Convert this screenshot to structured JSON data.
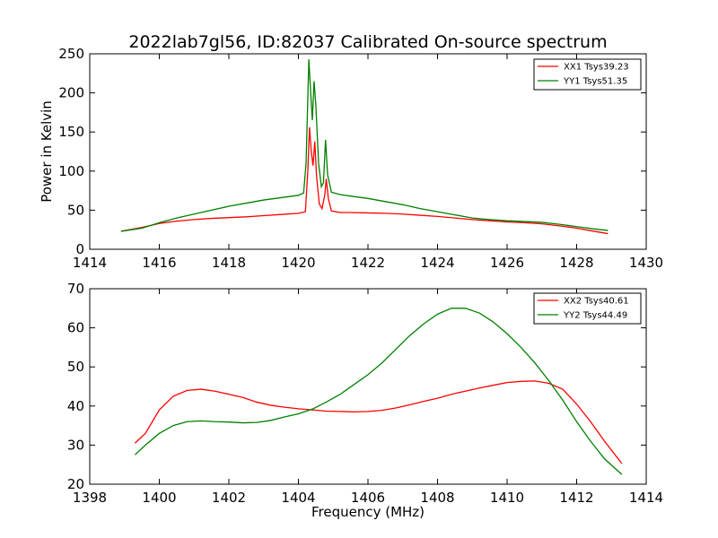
{
  "chart_data": [
    {
      "type": "line",
      "title": "2022lab7gl56, ID:82037 Calibrated On-source spectrum",
      "xlabel": "",
      "ylabel": "Power in Kelvin",
      "xlim": [
        1414,
        1430
      ],
      "ylim": [
        0,
        250
      ],
      "xticks": [
        1414,
        1416,
        1418,
        1420,
        1422,
        1424,
        1426,
        1428,
        1430
      ],
      "yticks": [
        0,
        50,
        100,
        150,
        200,
        250
      ],
      "legend_position": "top-right",
      "grid": false,
      "series": [
        {
          "name": "XX1 Tsys39.23",
          "color": "#ff0000",
          "points": [
            [
              1414.9,
              23
            ],
            [
              1415.5,
              28
            ],
            [
              1416.0,
              33
            ],
            [
              1416.5,
              36
            ],
            [
              1417.0,
              38
            ],
            [
              1417.5,
              39.5
            ],
            [
              1418.0,
              40.5
            ],
            [
              1418.5,
              41.5
            ],
            [
              1419.0,
              43
            ],
            [
              1419.5,
              44.5
            ],
            [
              1420.0,
              46
            ],
            [
              1420.2,
              48
            ],
            [
              1420.27,
              100
            ],
            [
              1420.32,
              156
            ],
            [
              1420.37,
              125
            ],
            [
              1420.42,
              107
            ],
            [
              1420.47,
              138
            ],
            [
              1420.52,
              95
            ],
            [
              1420.6,
              58
            ],
            [
              1420.68,
              52
            ],
            [
              1420.76,
              70
            ],
            [
              1420.8,
              90
            ],
            [
              1420.86,
              65
            ],
            [
              1420.95,
              49
            ],
            [
              1421.2,
              47
            ],
            [
              1421.5,
              47
            ],
            [
              1422.0,
              46.5
            ],
            [
              1422.5,
              46
            ],
            [
              1423.0,
              45
            ],
            [
              1423.5,
              43.5
            ],
            [
              1424.0,
              42
            ],
            [
              1424.5,
              40
            ],
            [
              1425.0,
              38
            ],
            [
              1425.5,
              36.5
            ],
            [
              1426.0,
              35
            ],
            [
              1426.5,
              34
            ],
            [
              1427.0,
              32.5
            ],
            [
              1427.5,
              30
            ],
            [
              1428.0,
              27
            ],
            [
              1428.5,
              23
            ],
            [
              1428.9,
              20
            ]
          ]
        },
        {
          "name": "YY1 Tsys51.35",
          "color": "#008000",
          "points": [
            [
              1414.9,
              23
            ],
            [
              1415.5,
              27
            ],
            [
              1416.0,
              34
            ],
            [
              1416.5,
              40
            ],
            [
              1417.0,
              45
            ],
            [
              1417.5,
              50
            ],
            [
              1418.0,
              55
            ],
            [
              1418.5,
              59
            ],
            [
              1419.0,
              63
            ],
            [
              1419.5,
              66
            ],
            [
              1420.0,
              69
            ],
            [
              1420.15,
              72
            ],
            [
              1420.22,
              110
            ],
            [
              1420.3,
              243
            ],
            [
              1420.36,
              195
            ],
            [
              1420.4,
              165
            ],
            [
              1420.45,
              215
            ],
            [
              1420.5,
              185
            ],
            [
              1420.58,
              110
            ],
            [
              1420.66,
              80
            ],
            [
              1420.72,
              85
            ],
            [
              1420.78,
              140
            ],
            [
              1420.84,
              95
            ],
            [
              1420.95,
              73
            ],
            [
              1421.2,
              70
            ],
            [
              1421.5,
              68
            ],
            [
              1422.0,
              65
            ],
            [
              1422.5,
              61
            ],
            [
              1423.0,
              57
            ],
            [
              1423.5,
              52
            ],
            [
              1424.0,
              48
            ],
            [
              1424.5,
              44
            ],
            [
              1425.0,
              40
            ],
            [
              1425.5,
              38
            ],
            [
              1426.0,
              36.5
            ],
            [
              1426.5,
              35.5
            ],
            [
              1427.0,
              34.5
            ],
            [
              1427.5,
              32
            ],
            [
              1428.0,
              29
            ],
            [
              1428.5,
              26
            ],
            [
              1428.9,
              24
            ]
          ]
        }
      ]
    },
    {
      "type": "line",
      "title": "",
      "xlabel": "Frequency (MHz)",
      "ylabel": "",
      "xlim": [
        1398,
        1414
      ],
      "ylim": [
        20,
        70
      ],
      "xticks": [
        1398,
        1400,
        1402,
        1404,
        1406,
        1408,
        1410,
        1412,
        1414
      ],
      "yticks": [
        20,
        30,
        40,
        50,
        60,
        70
      ],
      "legend_position": "top-right",
      "grid": false,
      "series": [
        {
          "name": "XX2 Tsys40.61",
          "color": "#ff0000",
          "points": [
            [
              1399.3,
              30.5
            ],
            [
              1399.6,
              33
            ],
            [
              1400.0,
              39
            ],
            [
              1400.4,
              42.5
            ],
            [
              1400.8,
              44
            ],
            [
              1401.2,
              44.3
            ],
            [
              1401.6,
              43.8
            ],
            [
              1402.0,
              43
            ],
            [
              1402.4,
              42.2
            ],
            [
              1402.8,
              41
            ],
            [
              1403.2,
              40.2
            ],
            [
              1403.6,
              39.7
            ],
            [
              1404.0,
              39.3
            ],
            [
              1404.4,
              39
            ],
            [
              1404.8,
              38.7
            ],
            [
              1405.2,
              38.6
            ],
            [
              1405.6,
              38.5
            ],
            [
              1406.0,
              38.6
            ],
            [
              1406.4,
              38.9
            ],
            [
              1406.8,
              39.5
            ],
            [
              1407.2,
              40.3
            ],
            [
              1407.6,
              41.2
            ],
            [
              1408.0,
              42
            ],
            [
              1408.4,
              43
            ],
            [
              1408.8,
              43.8
            ],
            [
              1409.2,
              44.6
            ],
            [
              1409.6,
              45.3
            ],
            [
              1410.0,
              46
            ],
            [
              1410.4,
              46.3
            ],
            [
              1410.8,
              46.4
            ],
            [
              1411.2,
              45.8
            ],
            [
              1411.6,
              44.3
            ],
            [
              1412.0,
              40.5
            ],
            [
              1412.4,
              36
            ],
            [
              1412.8,
              31
            ],
            [
              1413.3,
              25.3
            ]
          ]
        },
        {
          "name": "YY2 Tsys44.49",
          "color": "#008000",
          "points": [
            [
              1399.3,
              27.5
            ],
            [
              1399.6,
              30
            ],
            [
              1400.0,
              33
            ],
            [
              1400.4,
              35
            ],
            [
              1400.8,
              36
            ],
            [
              1401.2,
              36.2
            ],
            [
              1401.6,
              36
            ],
            [
              1402.0,
              35.9
            ],
            [
              1402.4,
              35.7
            ],
            [
              1402.8,
              35.8
            ],
            [
              1403.2,
              36.3
            ],
            [
              1403.6,
              37.2
            ],
            [
              1404.0,
              38
            ],
            [
              1404.4,
              39.2
            ],
            [
              1404.8,
              41
            ],
            [
              1405.2,
              43
            ],
            [
              1405.6,
              45.5
            ],
            [
              1406.0,
              48
            ],
            [
              1406.4,
              51
            ],
            [
              1406.8,
              54.5
            ],
            [
              1407.2,
              58
            ],
            [
              1407.6,
              61
            ],
            [
              1408.0,
              63.5
            ],
            [
              1408.4,
              65
            ],
            [
              1408.8,
              65
            ],
            [
              1409.2,
              63.8
            ],
            [
              1409.6,
              61.5
            ],
            [
              1410.0,
              58.5
            ],
            [
              1410.4,
              55
            ],
            [
              1410.8,
              51
            ],
            [
              1411.2,
              46.5
            ],
            [
              1411.6,
              41.5
            ],
            [
              1412.0,
              36
            ],
            [
              1412.4,
              31
            ],
            [
              1412.8,
              26.5
            ],
            [
              1413.3,
              22.5
            ]
          ]
        }
      ]
    }
  ]
}
